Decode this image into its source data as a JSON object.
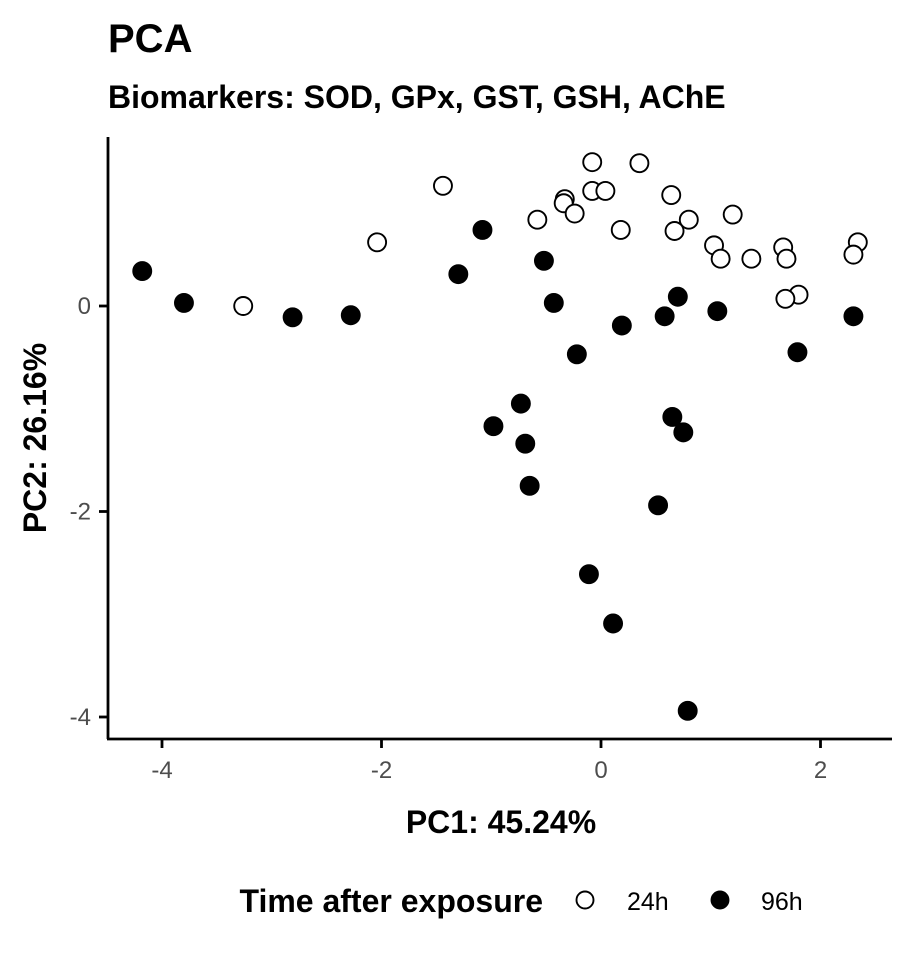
{
  "chart_data": {
    "type": "scatter",
    "title": "PCA",
    "subtitle": "Biomarkers: SOD, GPx, GST, GSH, AChE",
    "xlabel": "PC1: 45.24%",
    "ylabel": "PC2: 26.16%",
    "xlim": [
      -4.5,
      2.65
    ],
    "ylim": [
      -4.2,
      1.68
    ],
    "x_ticks": [
      -4,
      -2,
      0,
      2
    ],
    "y_ticks": [
      -4,
      -2,
      0
    ],
    "x_tick_labels": [
      "-4",
      "-2",
      "0",
      "2"
    ],
    "y_tick_labels": [
      "-4",
      "-2",
      "0"
    ],
    "grid": false,
    "legend": {
      "title": "Time after exposure",
      "placement": "bottom"
    },
    "series": [
      {
        "name": "24h",
        "marker": "open-circle",
        "points": [
          [
            -0.08,
            1.4
          ],
          [
            0.35,
            1.39
          ],
          [
            -1.44,
            1.17
          ],
          [
            -0.08,
            1.12
          ],
          [
            0.04,
            1.12
          ],
          [
            0.64,
            1.08
          ],
          [
            -0.33,
            1.04
          ],
          [
            -0.34,
            1.0
          ],
          [
            -0.24,
            0.9
          ],
          [
            1.2,
            0.89
          ],
          [
            -0.58,
            0.84
          ],
          [
            0.8,
            0.84
          ],
          [
            0.18,
            0.74
          ],
          [
            0.67,
            0.73
          ],
          [
            -2.04,
            0.62
          ],
          [
            2.34,
            0.62
          ],
          [
            1.03,
            0.59
          ],
          [
            1.66,
            0.57
          ],
          [
            2.3,
            0.5
          ],
          [
            1.09,
            0.46
          ],
          [
            1.37,
            0.46
          ],
          [
            1.69,
            0.46
          ],
          [
            1.8,
            0.11
          ],
          [
            1.68,
            0.07
          ],
          [
            -3.26,
            0.0
          ]
        ]
      },
      {
        "name": "96h",
        "marker": "filled-circle",
        "points": [
          [
            -1.08,
            0.74
          ],
          [
            -0.52,
            0.44
          ],
          [
            -4.18,
            0.34
          ],
          [
            -1.3,
            0.31
          ],
          [
            0.7,
            0.09
          ],
          [
            -0.43,
            0.03
          ],
          [
            -3.8,
            0.03
          ],
          [
            1.06,
            -0.05
          ],
          [
            -2.28,
            -0.09
          ],
          [
            0.58,
            -0.1
          ],
          [
            2.3,
            -0.1
          ],
          [
            -2.81,
            -0.11
          ],
          [
            0.19,
            -0.19
          ],
          [
            -0.22,
            -0.47
          ],
          [
            1.79,
            -0.45
          ],
          [
            -0.73,
            -0.95
          ],
          [
            0.65,
            -1.08
          ],
          [
            -0.98,
            -1.17
          ],
          [
            0.75,
            -1.23
          ],
          [
            -0.69,
            -1.34
          ],
          [
            -0.65,
            -1.75
          ],
          [
            0.52,
            -1.94
          ],
          [
            -0.11,
            -2.61
          ],
          [
            0.11,
            -3.09
          ],
          [
            0.79,
            -3.94
          ]
        ]
      }
    ]
  }
}
